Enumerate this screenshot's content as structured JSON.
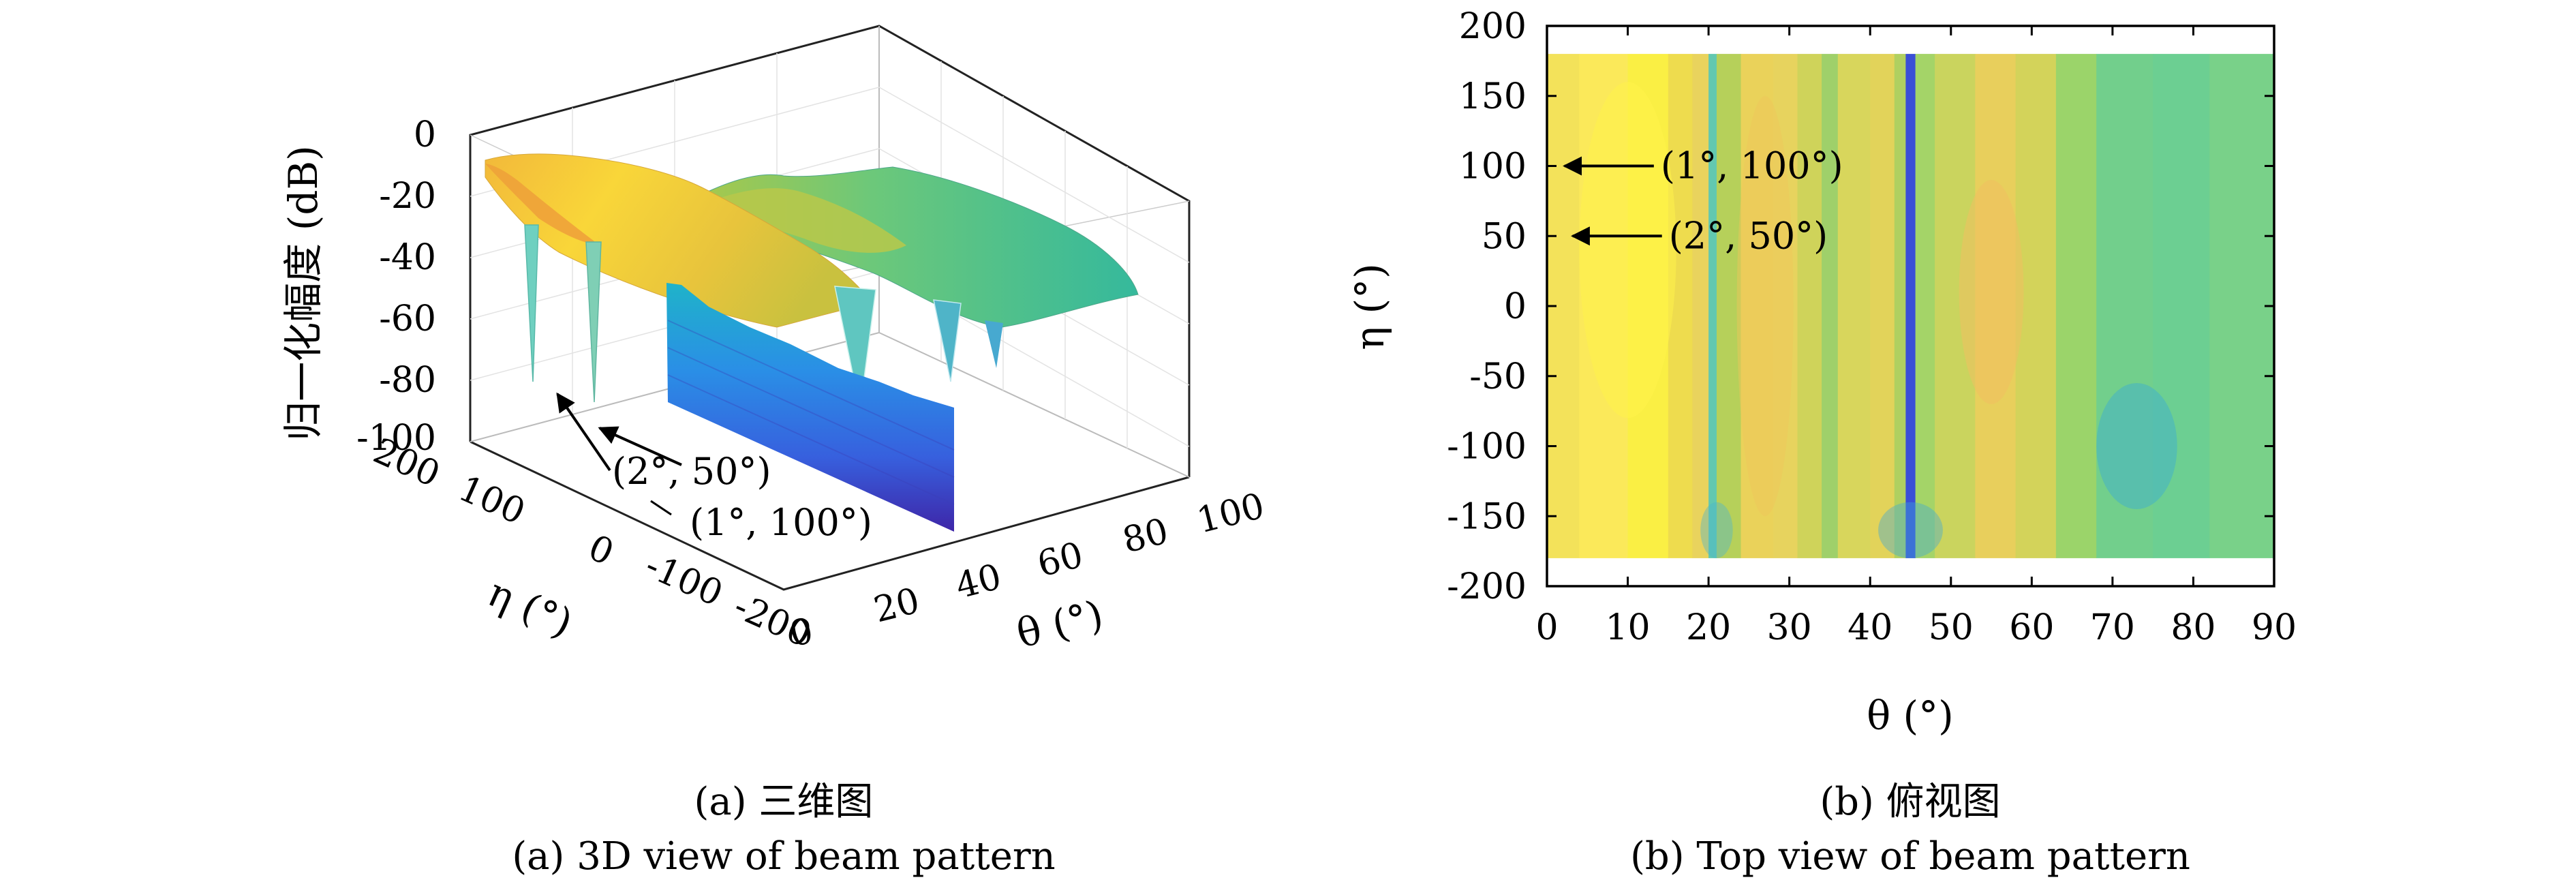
{
  "figure": {
    "captions": [
      {
        "zh": "(a) 三维图",
        "en": "(a) 3D view of beam pattern"
      },
      {
        "zh": "(b) 俯视图",
        "en": "(b) Top view of beam pattern"
      }
    ]
  },
  "chart_data": [
    {
      "type": "surface3d",
      "zlabel": "归一化幅度 (dB)",
      "xlabel": "θ (°)",
      "ylabel": "η (°)",
      "x_ticks": [
        "0",
        "20",
        "40",
        "60",
        "80",
        "100"
      ],
      "y_ticks": [
        "200",
        "100",
        "0",
        "-100",
        "-200"
      ],
      "z_ticks": [
        "0",
        "-20",
        "-40",
        "-60",
        "-80",
        "-100"
      ],
      "xlim": [
        0,
        100
      ],
      "ylim": [
        -200,
        200
      ],
      "zlim": [
        -100,
        0
      ],
      "nulls_theta": [
        1,
        2,
        20,
        34,
        45
      ],
      "annotations": [
        {
          "text": "(2°, 50°)",
          "theta": 2,
          "eta": 50
        },
        {
          "text": "(1°, 100°)",
          "theta": 1,
          "eta": 100
        }
      ],
      "colormap": [
        "#3e26a8",
        "#2f7ff5",
        "#1fb8c8",
        "#5ccf7b",
        "#c8c23f",
        "#f9d23a",
        "#fafa14"
      ]
    },
    {
      "type": "heatmap",
      "xlabel": "θ (°)",
      "ylabel": "η (°)",
      "x_ticks": [
        "0",
        "10",
        "20",
        "30",
        "40",
        "50",
        "60",
        "70",
        "80",
        "90"
      ],
      "y_ticks": [
        "200",
        "150",
        "100",
        "50",
        "0",
        "-50",
        "-100",
        "-150",
        "-200"
      ],
      "xlim": [
        0,
        90
      ],
      "ylim": [
        -200,
        200
      ],
      "data_extent": {
        "eta": [
          -180,
          180
        ]
      },
      "annotations": [
        {
          "text": "(1°, 100°)",
          "theta": 1,
          "eta": 100
        },
        {
          "text": "(2°, 50°)",
          "theta": 2,
          "eta": 50
        }
      ],
      "bands": [
        {
          "theta": 0,
          "color": "#f3e25a"
        },
        {
          "theta": 4,
          "color": "#fbe95a"
        },
        {
          "theta": 10,
          "color": "#faef44"
        },
        {
          "theta": 15,
          "color": "#eedc4e"
        },
        {
          "theta": 18,
          "color": "#e9d35d"
        },
        {
          "theta": 20,
          "color": "#62c8b0"
        },
        {
          "theta": 21,
          "color": "#b6d05a"
        },
        {
          "theta": 24,
          "color": "#ead25a"
        },
        {
          "theta": 28,
          "color": "#e7d35e"
        },
        {
          "theta": 31,
          "color": "#cfd35a"
        },
        {
          "theta": 34,
          "color": "#9fd06a"
        },
        {
          "theta": 36,
          "color": "#d8d65c"
        },
        {
          "theta": 40,
          "color": "#e2d35a"
        },
        {
          "theta": 43,
          "color": "#b0d060"
        },
        {
          "theta": 44.4,
          "color": "#3a4fd6"
        },
        {
          "theta": 45.6,
          "color": "#a4d468"
        },
        {
          "theta": 48,
          "color": "#cad45e"
        },
        {
          "theta": 53,
          "color": "#e8cf5c"
        },
        {
          "theta": 58,
          "color": "#d3d35a"
        },
        {
          "theta": 63,
          "color": "#9bd46a"
        },
        {
          "theta": 68,
          "color": "#72cf8c"
        },
        {
          "theta": 75,
          "color": "#6ccf92"
        },
        {
          "theta": 82,
          "color": "#79d189"
        },
        {
          "theta": 90,
          "color": "#7fd287"
        }
      ]
    }
  ]
}
